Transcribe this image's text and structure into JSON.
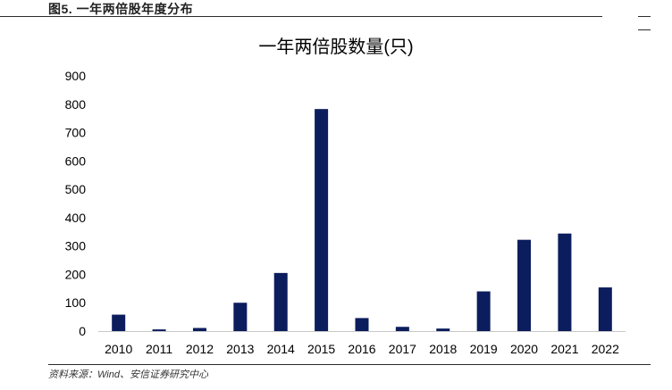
{
  "figure": {
    "label": "图5. 一年两倍股年度分布",
    "source": "资料来源：Wind、安信证券研究中心"
  },
  "chart_data": {
    "type": "bar",
    "title": "一年两倍股数量(只)",
    "xlabel": "",
    "ylabel": "",
    "categories": [
      "2010",
      "2011",
      "2012",
      "2013",
      "2014",
      "2015",
      "2016",
      "2017",
      "2018",
      "2019",
      "2020",
      "2021",
      "2022"
    ],
    "values": [
      58,
      6,
      11,
      100,
      205,
      783,
      46,
      15,
      9,
      140,
      322,
      344,
      154
    ],
    "ylim": [
      0,
      900
    ],
    "yticks": [
      0,
      100,
      200,
      300,
      400,
      500,
      600,
      700,
      800,
      900
    ],
    "grid": false,
    "bar_color": "#0b1d5c"
  }
}
